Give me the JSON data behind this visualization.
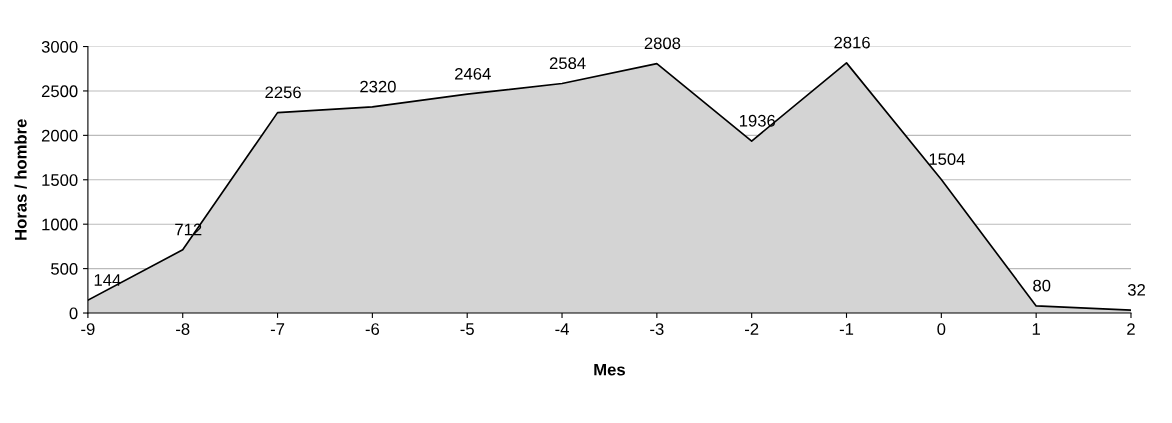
{
  "chart_data": {
    "type": "area",
    "xlabel": "Mes",
    "ylabel": "Horas / hombre",
    "x": [
      -9,
      -8,
      -7,
      -6,
      -5,
      -4,
      -3,
      -2,
      -1,
      0,
      1,
      2
    ],
    "values": [
      144,
      712,
      2256,
      2320,
      2464,
      2584,
      2808,
      1936,
      2816,
      1504,
      80,
      32
    ],
    "color": "#d4d4d4",
    "xlim": [
      -9,
      2
    ],
    "xticks": [
      -9,
      -8,
      -7,
      -6,
      -5,
      -4,
      -3,
      -2,
      -1,
      0,
      1,
      2
    ],
    "ylim": [
      0,
      3000
    ],
    "yticks": [
      0,
      500,
      1000,
      1500,
      2000,
      2500,
      3000
    ],
    "grid": "y",
    "data_labels": true
  }
}
